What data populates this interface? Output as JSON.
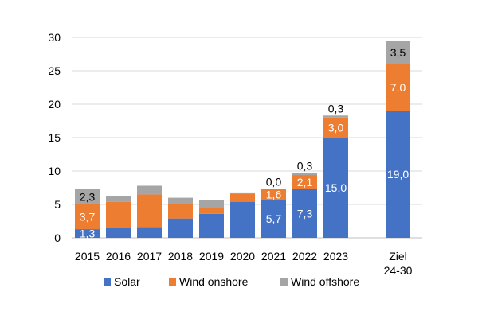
{
  "chart_data": {
    "type": "bar",
    "stacked": true,
    "title": "",
    "xlabel": "",
    "ylabel": "",
    "ylim": [
      0,
      30
    ],
    "yticks": [
      0,
      5,
      10,
      15,
      20,
      25,
      30
    ],
    "grid": true,
    "legend_position": "bottom",
    "categories": [
      "2015",
      "2016",
      "2017",
      "2018",
      "2019",
      "2020",
      "2021",
      "2022",
      "2023",
      "Ziel 24-30"
    ],
    "category_lines": [
      [
        "2015"
      ],
      [
        "2016"
      ],
      [
        "2017"
      ],
      [
        "2018"
      ],
      [
        "2019"
      ],
      [
        "2020"
      ],
      [
        "2021"
      ],
      [
        "2022"
      ],
      [
        "2023"
      ],
      [
        "Ziel",
        "24-30"
      ]
    ],
    "series": [
      {
        "name": "Solar",
        "color": "#4472C4",
        "values": [
          1.3,
          1.5,
          1.6,
          2.9,
          3.6,
          5.4,
          5.7,
          7.3,
          15.0,
          19.0
        ],
        "labels": [
          "1,3",
          "",
          "",
          "",
          "",
          "",
          "5,7",
          "7,3",
          "15,0",
          "19,0"
        ]
      },
      {
        "name": "Wind onshore",
        "color": "#ED7D31",
        "values": [
          3.7,
          3.9,
          4.9,
          2.1,
          0.9,
          1.2,
          1.6,
          2.1,
          3.0,
          7.0
        ],
        "labels": [
          "3,7",
          "",
          "",
          "",
          "",
          "",
          "1,6",
          "2,1",
          "3,0",
          "7,0"
        ]
      },
      {
        "name": "Wind offshore",
        "color": "#A5A5A5",
        "values": [
          2.3,
          0.9,
          1.3,
          1.0,
          1.1,
          0.2,
          0.0,
          0.3,
          0.3,
          3.5
        ],
        "labels": [
          "2,3",
          "",
          "",
          "",
          "",
          "",
          "0,0",
          "0,3",
          "0,3",
          "3,5"
        ]
      }
    ]
  }
}
